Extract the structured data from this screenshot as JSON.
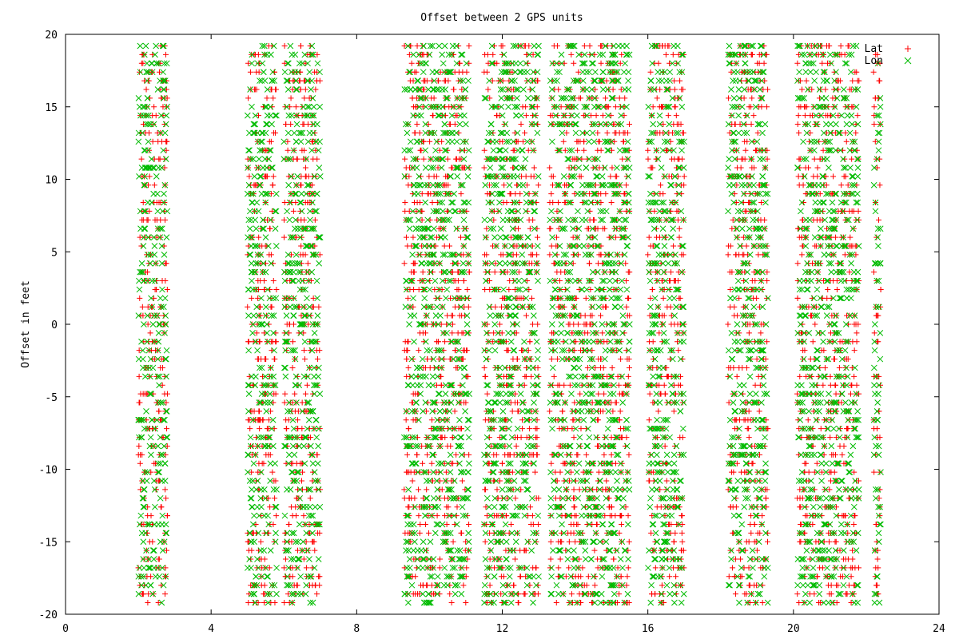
{
  "chart_data": {
    "type": "scatter",
    "title": "Offset between 2 GPS units",
    "xlabel": "",
    "ylabel": "Offset in feet",
    "xlim": [
      0,
      24
    ],
    "ylim": [
      -20,
      20
    ],
    "x_ticks": [
      0,
      4,
      8,
      12,
      16,
      20,
      24
    ],
    "y_ticks": [
      -20,
      -15,
      -10,
      -5,
      0,
      5,
      10,
      15,
      20
    ],
    "x_tick_labels": [
      "0",
      "4",
      "8",
      "12",
      "16",
      "20",
      "24"
    ],
    "y_tick_labels": [
      "-20",
      "-15",
      "-10",
      "-5",
      "0",
      "5",
      "10",
      "15",
      "20"
    ],
    "grid": false,
    "legend_position": "top-right",
    "y_value_range": [
      -19.5,
      19.5
    ],
    "series": [
      {
        "name": "Lat",
        "marker": "+",
        "color": "#ff0000",
        "x_clusters": [
          [
            2.0,
            2.8
          ],
          [
            5.0,
            5.8
          ],
          [
            6.0,
            7.0
          ],
          [
            9.3,
            11.1
          ],
          [
            11.5,
            13.0
          ],
          [
            13.3,
            15.5
          ],
          [
            16.0,
            17.0
          ],
          [
            18.2,
            19.3
          ],
          [
            20.1,
            21.8
          ],
          [
            22.2,
            22.4
          ]
        ]
      },
      {
        "name": "Lon",
        "marker": "×",
        "color": "#00bb00",
        "x_clusters": [
          [
            2.0,
            2.8
          ],
          [
            5.0,
            5.8
          ],
          [
            6.0,
            7.0
          ],
          [
            9.3,
            11.1
          ],
          [
            11.5,
            13.0
          ],
          [
            13.3,
            15.5
          ],
          [
            16.0,
            17.0
          ],
          [
            18.2,
            19.3
          ],
          [
            20.1,
            21.8
          ],
          [
            22.2,
            22.4
          ]
        ]
      }
    ]
  }
}
